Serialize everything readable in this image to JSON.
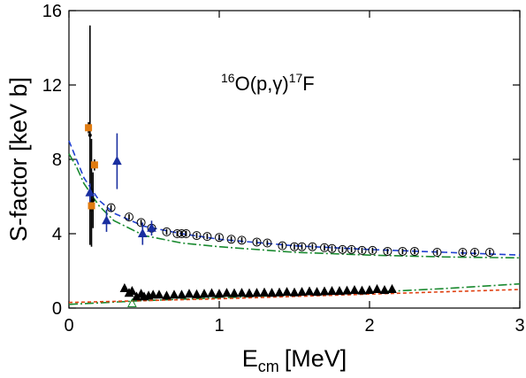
{
  "chart_data": {
    "type": "scatter",
    "annotation": {
      "mass1": "16",
      "reaction": "O(p,γ)",
      "mass2": "17",
      "product": "F"
    },
    "x_label": {
      "main": "E",
      "sub": "cm",
      "unit": "[MeV]"
    },
    "y_label": "S-factor [keV b]",
    "xlim": [
      0,
      3
    ],
    "ylim": [
      0,
      16
    ],
    "xticks": [
      0,
      1,
      2,
      3
    ],
    "yticks": [
      0,
      4,
      8,
      12,
      16
    ],
    "series": [
      {
        "kind": "line",
        "dash": "7 4",
        "color": "#2040d0",
        "x": [
          0,
          0.05,
          0.1,
          0.2,
          0.3,
          0.5,
          0.75,
          1.0,
          1.5,
          2.0,
          2.5,
          3.0
        ],
        "values": [
          9.0,
          8.0,
          7.0,
          5.8,
          5.1,
          4.4,
          4.0,
          3.7,
          3.35,
          3.15,
          3.0,
          2.85
        ]
      },
      {
        "kind": "line",
        "dash": "10 3 2 3",
        "color": "#1a8a30",
        "x": [
          0,
          0.05,
          0.1,
          0.2,
          0.3,
          0.5,
          0.75,
          1.0,
          1.5,
          2.0,
          2.5,
          3.0
        ],
        "values": [
          8.3,
          7.6,
          6.7,
          5.5,
          4.7,
          3.9,
          3.5,
          3.3,
          3.0,
          2.85,
          2.75,
          2.7
        ]
      },
      {
        "kind": "line",
        "dash": "10 3 2 3",
        "color": "#1a8a30",
        "x": [
          0,
          0.5,
          1.0,
          1.5,
          2.0,
          2.5,
          3.0
        ],
        "values": [
          0.2,
          0.4,
          0.55,
          0.7,
          0.85,
          1.05,
          1.3
        ]
      },
      {
        "kind": "line",
        "dash": "4 3",
        "color": "#e04010",
        "x": [
          0,
          1.0,
          2.0,
          3.0
        ],
        "values": [
          0.3,
          0.5,
          0.75,
          1.0
        ]
      },
      {
        "kind": "circle-open",
        "color": "#000000",
        "x": [
          0.28,
          0.4,
          0.48,
          0.55,
          0.65,
          0.72,
          0.75,
          0.78,
          0.85,
          0.92,
          1.0,
          1.08,
          1.15,
          1.25,
          1.32,
          1.42,
          1.5,
          1.55,
          1.62,
          1.7,
          1.75,
          1.82,
          1.88,
          1.95,
          2.02,
          2.12,
          2.22,
          2.3,
          2.45,
          2.62,
          2.7,
          2.8
        ],
        "values": [
          5.4,
          4.9,
          4.6,
          4.3,
          4.1,
          4.0,
          4.0,
          4.0,
          3.9,
          3.85,
          3.8,
          3.7,
          3.65,
          3.55,
          3.5,
          3.35,
          3.3,
          3.3,
          3.3,
          3.25,
          3.2,
          3.15,
          3.15,
          3.1,
          3.1,
          3.05,
          3.05,
          3.05,
          3.0,
          3.0,
          3.0,
          3.0
        ],
        "errors": [
          0.15,
          0.15,
          0.15,
          0.15,
          0.15,
          0.15,
          0.15,
          0.15,
          0.15,
          0.15,
          0.15,
          0.15,
          0.15,
          0.15,
          0.15,
          0.15,
          0.15,
          0.15,
          0.15,
          0.15,
          0.15,
          0.15,
          0.15,
          0.15,
          0.15,
          0.15,
          0.15,
          0.15,
          0.15,
          0.15,
          0.15,
          0.15
        ]
      },
      {
        "kind": "point",
        "color": "#000000",
        "x": [
          0.14,
          0.15,
          0.16
        ],
        "values": [
          9.3,
          6.2,
          5.8
        ],
        "errors": [
          5.9,
          2.9,
          1.5
        ]
      },
      {
        "kind": "square",
        "color": "#e07b10",
        "x": [
          0.13,
          0.17,
          0.15
        ],
        "values": [
          9.7,
          7.7,
          5.5
        ],
        "errors": [
          0.3,
          0.3,
          0.3
        ]
      },
      {
        "kind": "triangle",
        "color": "#1a2fa0",
        "x": [
          0.25,
          0.32,
          0.49,
          0.55,
          0.14
        ],
        "values": [
          4.7,
          7.9,
          4.0,
          4.3,
          6.2
        ],
        "errors": [
          0.6,
          1.5,
          0.6,
          0.4,
          0.5
        ]
      },
      {
        "kind": "triangle",
        "color": "#000000",
        "x": [
          0.37,
          0.4,
          0.42,
          0.45,
          0.48,
          0.5,
          0.53,
          0.56,
          0.6,
          0.65,
          0.7,
          0.75,
          0.8,
          0.85,
          0.9,
          0.95,
          1.0,
          1.05,
          1.1,
          1.15,
          1.2,
          1.25,
          1.3,
          1.35,
          1.4,
          1.45,
          1.5,
          1.55,
          1.6,
          1.65,
          1.7,
          1.75,
          1.8,
          1.85,
          1.9,
          1.95,
          2.0,
          2.05,
          2.1,
          2.15
        ],
        "values": [
          1.05,
          0.8,
          0.9,
          0.6,
          0.75,
          0.6,
          0.65,
          0.7,
          0.7,
          0.65,
          0.7,
          0.7,
          0.75,
          0.72,
          0.75,
          0.78,
          0.75,
          0.8,
          0.78,
          0.8,
          0.78,
          0.8,
          0.82,
          0.8,
          0.82,
          0.85,
          0.82,
          0.85,
          0.88,
          0.85,
          0.88,
          0.9,
          0.9,
          0.92,
          0.95,
          0.92,
          0.95,
          1.0,
          0.95,
          1.0
        ]
      },
      {
        "kind": "triangle-open",
        "color": "#1a8a30",
        "x": [
          0.42
        ],
        "values": [
          0.24
        ]
      }
    ]
  }
}
